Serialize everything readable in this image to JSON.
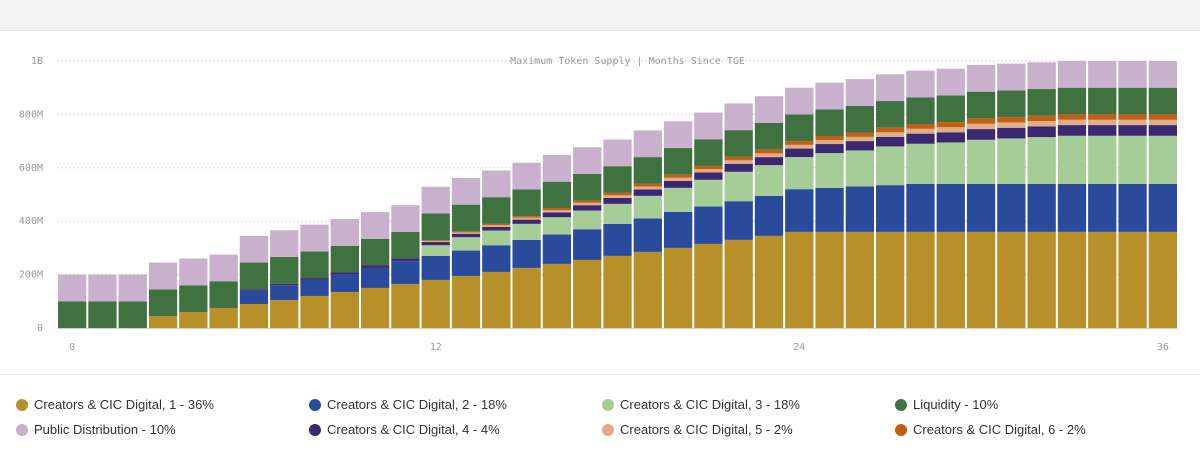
{
  "chart_data": {
    "type": "bar",
    "stacked": true,
    "title": "Maximum Token Supply | Months Since TGE",
    "xlabel": "",
    "ylabel": "",
    "ylim": [
      0,
      1000000000
    ],
    "yticks": [
      {
        "value": 0,
        "label": "0"
      },
      {
        "value": 200000000,
        "label": "200M"
      },
      {
        "value": 400000000,
        "label": "400M"
      },
      {
        "value": 600000000,
        "label": "600M"
      },
      {
        "value": 800000000,
        "label": "800M"
      },
      {
        "value": 1000000000,
        "label": "1B"
      }
    ],
    "xticks": [
      {
        "value": 0,
        "label": "0"
      },
      {
        "value": 12,
        "label": "12"
      },
      {
        "value": 24,
        "label": "24"
      },
      {
        "value": 36,
        "label": "36"
      }
    ],
    "grid": true,
    "legend_position": "bottom",
    "x": [
      0,
      1,
      2,
      3,
      4,
      5,
      6,
      7,
      8,
      9,
      10,
      11,
      12,
      13,
      14,
      15,
      16,
      17,
      18,
      19,
      20,
      21,
      22,
      23,
      24,
      25,
      26,
      27,
      28,
      29,
      30,
      31,
      32,
      33,
      34,
      35,
      36
    ],
    "series": [
      {
        "name": "Creators & CIC Digital, 1 - 36%",
        "color": "#b8902a",
        "values": [
          0,
          0,
          0,
          45,
          60,
          75,
          90,
          105,
          120,
          135,
          150,
          165,
          180,
          195,
          210,
          225,
          240,
          255,
          270,
          285,
          300,
          315,
          330,
          345,
          360,
          360,
          360,
          360,
          360,
          360,
          360,
          360,
          360,
          360,
          360,
          360,
          360
        ]
      },
      {
        "name": "Creators & CIC Digital, 2 - 18%",
        "color": "#2a4a9c",
        "values": [
          0,
          0,
          0,
          0,
          0,
          0,
          50,
          55,
          60,
          65,
          75,
          85,
          90,
          95,
          100,
          105,
          110,
          115,
          120,
          125,
          135,
          140,
          145,
          150,
          160,
          165,
          170,
          175,
          180,
          180,
          180,
          180,
          180,
          180,
          180,
          180,
          180
        ]
      },
      {
        "name": "Creators & CIC Digital, 3 - 18%",
        "color": "#a6cc98",
        "values": [
          0,
          0,
          0,
          0,
          0,
          0,
          0,
          0,
          0,
          0,
          0,
          0,
          40,
          50,
          55,
          60,
          65,
          70,
          75,
          85,
          90,
          100,
          110,
          115,
          120,
          130,
          135,
          145,
          150,
          155,
          165,
          170,
          175,
          180,
          180,
          180,
          180
        ]
      },
      {
        "name": "Creators & CIC Digital, 4 - 4%",
        "color": "#3a2873",
        "values": [
          0,
          0,
          0,
          0,
          0,
          0,
          5,
          6,
          7,
          8,
          9,
          10,
          12,
          13,
          14,
          16,
          18,
          20,
          22,
          24,
          26,
          28,
          30,
          30,
          32,
          34,
          35,
          36,
          38,
          38,
          40,
          40,
          40,
          40,
          40,
          40,
          40
        ]
      },
      {
        "name": "Creators & CIC Digital, 5 - 2%",
        "color": "#e0ad86",
        "values": [
          0,
          0,
          0,
          0,
          0,
          0,
          0,
          0,
          0,
          0,
          0,
          0,
          4,
          5,
          6,
          7,
          8,
          9,
          10,
          11,
          12,
          12,
          13,
          14,
          14,
          15,
          16,
          17,
          18,
          19,
          20,
          20,
          20,
          20,
          20,
          20,
          20
        ]
      },
      {
        "name": "Creators & CIC Digital, 6 - 2%",
        "color": "#c45e12",
        "values": [
          0,
          0,
          0,
          0,
          0,
          0,
          0,
          0,
          0,
          0,
          0,
          0,
          3,
          4,
          5,
          6,
          7,
          8,
          9,
          10,
          11,
          12,
          13,
          14,
          14,
          15,
          16,
          17,
          18,
          19,
          20,
          20,
          20,
          20,
          20,
          20,
          20
        ]
      },
      {
        "name": "Liquidity - 10%",
        "color": "#3f7240",
        "values": [
          100,
          100,
          100,
          100,
          100,
          100,
          100,
          100,
          100,
          100,
          100,
          100,
          100,
          100,
          100,
          100,
          100,
          100,
          100,
          100,
          100,
          100,
          100,
          100,
          100,
          100,
          100,
          100,
          100,
          100,
          100,
          100,
          100,
          100,
          100,
          100,
          100
        ]
      },
      {
        "name": "Public Distribution - 10%",
        "color": "#c9b0cc",
        "values": [
          100,
          100,
          100,
          100,
          100,
          100,
          100,
          100,
          100,
          100,
          100,
          100,
          100,
          100,
          100,
          100,
          100,
          100,
          100,
          100,
          100,
          100,
          100,
          100,
          100,
          100,
          100,
          100,
          100,
          100,
          100,
          100,
          100,
          100,
          100,
          100,
          100
        ]
      }
    ],
    "units": "millions"
  },
  "legend": {
    "items": [
      {
        "label": "Creators & CIC Digital, 1 - 36%",
        "color": "#b8902a"
      },
      {
        "label": "Creators & CIC Digital, 2 - 18%",
        "color": "#2a4a9c"
      },
      {
        "label": "Creators & CIC Digital, 3 - 18%",
        "color": "#a6cc98"
      },
      {
        "label": "Liquidity - 10%",
        "color": "#3f7240"
      },
      {
        "label": "Public Distribution - 10%",
        "color": "#c9b0cc"
      },
      {
        "label": "Creators & CIC Digital, 4 - 4%",
        "color": "#3a2873"
      },
      {
        "label": "Creators & CIC Digital, 5 - 2%",
        "color": "#e0ad86"
      },
      {
        "label": "Creators & CIC Digital, 6 - 2%",
        "color": "#c45e12"
      }
    ]
  }
}
